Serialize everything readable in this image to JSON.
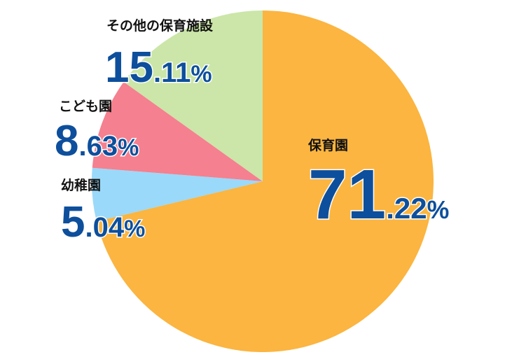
{
  "chart_data": {
    "type": "pie",
    "categories": [
      "保育園",
      "幼稚園",
      "こども園",
      "その他の保育施設"
    ],
    "values": [
      71.22,
      5.04,
      8.63,
      15.11
    ],
    "value_labels": [
      "71.22%",
      "5.04%",
      "8.63%",
      "15.11%"
    ],
    "colors": [
      "#fbb540",
      "#9ad9fa",
      "#f5808f",
      "#cbe6a8"
    ]
  }
}
